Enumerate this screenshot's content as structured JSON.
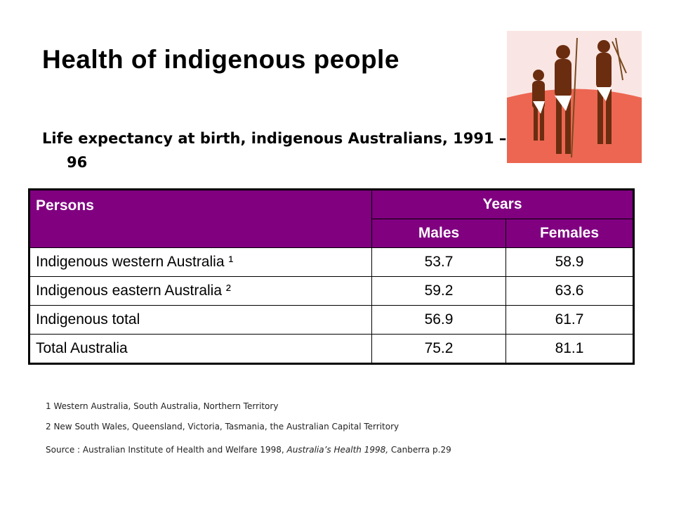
{
  "header": {
    "title": "Health of indigenous people",
    "subtitle": "Life expectancy at birth, indigenous Australians, 1991 – 96"
  },
  "table": {
    "header": {
      "label": "Persons",
      "group": "Years",
      "columns": [
        "Males",
        "Females"
      ]
    },
    "rows": [
      [
        "Indigenous western Australia ¹",
        53.7,
        58.9
      ],
      [
        "Indigenous eastern Australia  ²",
        59.2,
        63.6
      ],
      [
        "Indigenous total",
        56.9,
        61.7
      ],
      [
        "Total Australia",
        75.2,
        81.1
      ]
    ]
  },
  "notes": {
    "items": [
      "1 Western Australia, South Australia, Northern Territory",
      "2 New South Wales, Queensland, Victoria, Tasmania, the Australian Capital Territory"
    ],
    "source": {
      "before": "Source : Australian Institute of Health and Welfare 1998, ",
      "italic": "Australia’s Health 1998,",
      "after": " Canberra p.29"
    }
  }
}
